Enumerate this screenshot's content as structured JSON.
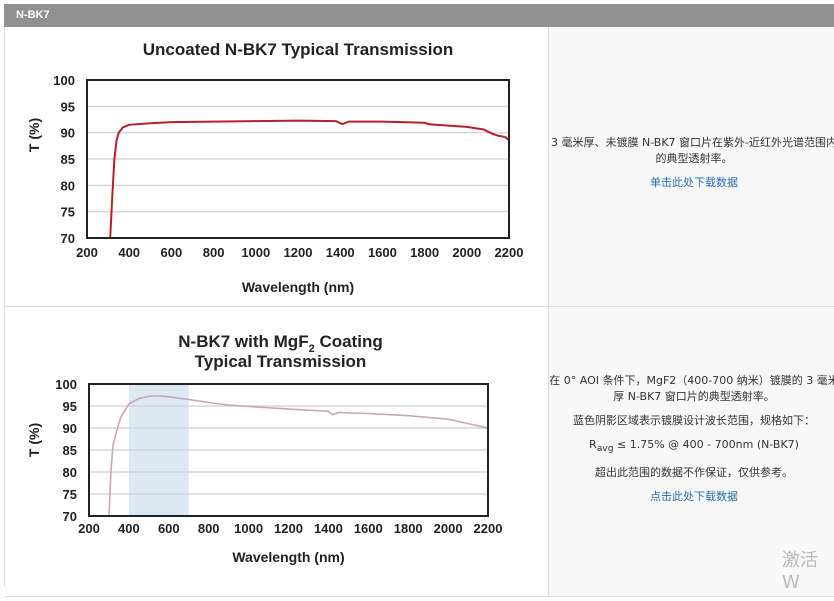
{
  "header": {
    "title": "N-BK7"
  },
  "rows": [
    {
      "description": [
        "3 毫米厚、未镀膜 N-BK7 窗口片在紫外-近红外光谱范围内的典型透射率。"
      ],
      "download_link": "单击此处下载数据"
    },
    {
      "description": [
        "在 0° AOI 条件下，MgF2（400-700 纳米）镀膜的 3 毫米厚 N-BK7 窗口片的典型透射率。",
        "蓝色阴影区域表示镀膜设计波长范围，规格如下："
      ],
      "spec": {
        "r": "R",
        "sub": "avg",
        "rest": " ≤ 1.75% @ 400 - 700nm (N-BK7)"
      },
      "note": "超出此范围的数据不作保证，仅供参考。",
      "download_link": "点击此处下载数据"
    }
  ],
  "watermark": "激活 W",
  "chart_data": [
    {
      "type": "line",
      "title": "Uncoated N-BK7 Typical Transmission",
      "xlabel": "Wavelength (nm)",
      "ylabel": "T (%)",
      "xlim": [
        200,
        2200
      ],
      "ylim": [
        70,
        100
      ],
      "grid": true,
      "line_color": "#b5202a",
      "xticks": [
        "200",
        "400",
        "600",
        "800",
        "1000",
        "1200",
        "1400",
        "1600",
        "1800",
        "2000",
        "2200"
      ],
      "yticks": [
        "100",
        "95",
        "90",
        "85",
        "80",
        "75",
        "70"
      ],
      "x": [
        310,
        320,
        330,
        340,
        350,
        370,
        400,
        500,
        600,
        800,
        1000,
        1200,
        1380,
        1410,
        1440,
        1600,
        1800,
        1820,
        2000,
        2080,
        2120,
        2150,
        2180,
        2200
      ],
      "y": [
        70,
        78,
        85,
        88.5,
        90,
        91,
        91.5,
        91.8,
        92,
        92.1,
        92.2,
        92.3,
        92.2,
        91.6,
        92.1,
        92.1,
        91.9,
        91.6,
        91.1,
        90.6,
        89.8,
        89.4,
        89.2,
        88.6
      ]
    },
    {
      "type": "line",
      "title": "N-BK7 with MgF₂ Coating",
      "title_line1": "N-BK7 with MgF",
      "title_sub": "2",
      "title_line1_end": " Coating",
      "title_line2": "Typical Transmission",
      "xlabel": "Wavelength (nm)",
      "ylabel": "T (%)",
      "xlim": [
        200,
        2200
      ],
      "ylim": [
        70,
        100
      ],
      "grid": true,
      "line_color": "#c9a9b0",
      "shaded_range": [
        400,
        700
      ],
      "shade_color": "#dce9f5",
      "xticks": [
        "200",
        "400",
        "600",
        "800",
        "1000",
        "1200",
        "1400",
        "1600",
        "1800",
        "2000",
        "2200"
      ],
      "yticks": [
        "100",
        "95",
        "90",
        "85",
        "80",
        "75",
        "70"
      ],
      "x": [
        300,
        310,
        320,
        340,
        360,
        400,
        450,
        500,
        550,
        600,
        700,
        800,
        900,
        1000,
        1200,
        1400,
        1420,
        1450,
        1600,
        1800,
        2000,
        2100,
        2150,
        2200
      ],
      "y": [
        70,
        80,
        86,
        89.5,
        92.5,
        95.5,
        96.7,
        97.2,
        97.3,
        97.1,
        96.5,
        95.8,
        95.2,
        94.9,
        94.3,
        93.8,
        93.0,
        93.5,
        93.3,
        92.8,
        92.0,
        91.0,
        90.5,
        90.0
      ]
    }
  ]
}
